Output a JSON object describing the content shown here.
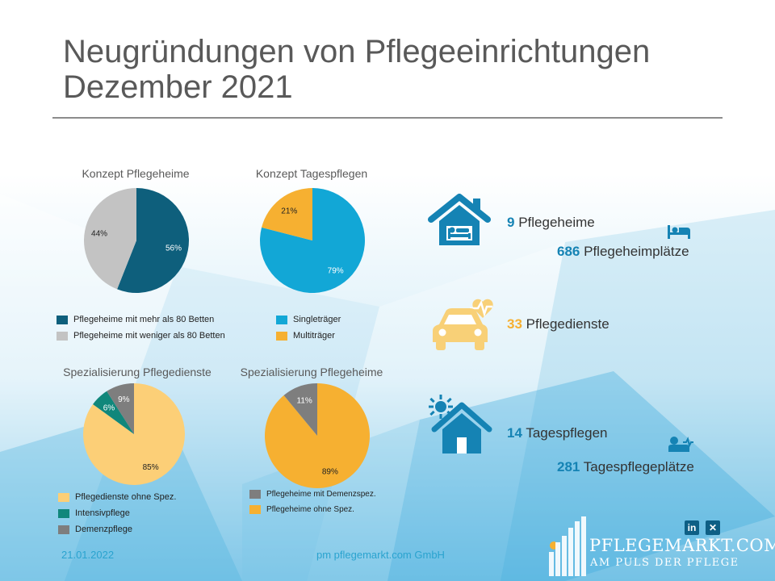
{
  "title_line1": "Neugründungen von Pflegeeinrichtungen",
  "title_line2": "Dezember 2021",
  "colors": {
    "dark_teal": "#0e5f7c",
    "light_gray": "#c3c3c3",
    "cyan": "#12a7d6",
    "orange": "#f6b031",
    "pale_yellow": "#fccf77",
    "green_teal": "#10877b",
    "mid_gray": "#7e7e7e",
    "icon_blue": "#1583b4",
    "icon_yellow": "#f8d077",
    "accent": "#2aa3cf"
  },
  "chart_data": [
    {
      "type": "pie",
      "title": "Konzept Pflegeheime",
      "labels": [
        "Pflegeheime mit mehr als 80 Betten",
        "Pflegeheime mit weniger als 80 Betten"
      ],
      "values": [
        56,
        44
      ],
      "value_labels": [
        "56%",
        "44%"
      ],
      "colors": [
        "#0e5f7c",
        "#c3c3c3"
      ],
      "legend": "bottom"
    },
    {
      "type": "pie",
      "title": "Konzept Tagespflegen",
      "labels": [
        "Singleträger",
        "Multiträger"
      ],
      "values": [
        79,
        21
      ],
      "value_labels": [
        "79%",
        "21%"
      ],
      "colors": [
        "#12a7d6",
        "#f6b031"
      ],
      "legend": "bottom"
    },
    {
      "type": "pie",
      "title": "Spezialisierung Pflegedienste",
      "labels": [
        "Pflegedienste ohne Spez.",
        "Intensivpflege",
        "Demenzpflege"
      ],
      "values": [
        85,
        6,
        9
      ],
      "value_labels": [
        "85%",
        "6%",
        "9%"
      ],
      "colors": [
        "#fccf77",
        "#10877b",
        "#7e7e7e"
      ],
      "legend": "bottom"
    },
    {
      "type": "pie",
      "title": "Spezialisierung Pflegeheime",
      "labels": [
        "Pflegeheime mit Demenzspez.",
        "Pflegeheime ohne Spez."
      ],
      "values": [
        11,
        89
      ],
      "value_labels": [
        "11%",
        "89%"
      ],
      "colors": [
        "#7e7e7e",
        "#f6b031"
      ],
      "legend": "bottom"
    }
  ],
  "stats": {
    "pflegeheime_num": "9",
    "pflegeheime_label": "Pflegeheime",
    "pflegeheimplaetze_num": "686",
    "pflegeheimplaetze_label": "Pflegeheimplätze",
    "pflegedienste_num": "33",
    "pflegedienste_label": "Pflegedienste",
    "tagespflegen_num": "14",
    "tagespflegen_label": "Tagespflegen",
    "tagespflegeplaetze_num": "281",
    "tagespflegeplaetze_label": "Tagespflegeplätze"
  },
  "icons": [
    "house-bed-icon",
    "bed-icon",
    "car-heartbeat-icon",
    "house-sun-icon",
    "person-lying-icon",
    "linkedin-icon",
    "xing-icon"
  ],
  "footer": {
    "date": "21.01.2022",
    "company": "pm pflegemarkt.com GmbH",
    "brand_name": "PFLEGEMARKT.COM",
    "brand_tagline": "AM PULS DER PFLEGE",
    "linkedin": "in",
    "xing": "✕"
  }
}
